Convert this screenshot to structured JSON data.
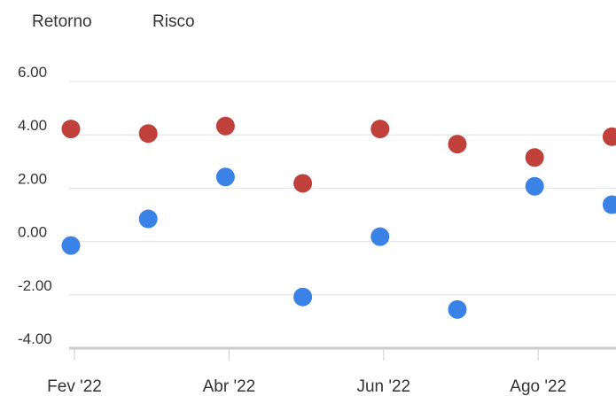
{
  "chart_data": {
    "type": "scatter",
    "legend": {
      "position": "top-left",
      "entries": [
        "Retorno",
        "Risco"
      ]
    },
    "x_ticks": [
      "Fev '22",
      "Abr '22",
      "Jun '22",
      "Ago '22"
    ],
    "y_ticks": [
      "6.00",
      "4.00",
      "2.00",
      "0.00",
      "-2.00",
      "-4.00"
    ],
    "ylim": [
      -4,
      6
    ],
    "grid": true,
    "series": [
      {
        "name": "Retorno",
        "color": "#3b82e6",
        "points": [
          {
            "x": "2022-02-01",
            "y": -0.15
          },
          {
            "x": "2022-03-01",
            "y": 0.85
          },
          {
            "x": "2022-04-01",
            "y": 2.42
          },
          {
            "x": "2022-05-01",
            "y": -2.08
          },
          {
            "x": "2022-06-01",
            "y": 0.18
          },
          {
            "x": "2022-07-01",
            "y": -2.55
          },
          {
            "x": "2022-08-01",
            "y": 2.07
          },
          {
            "x": "2022-09-01",
            "y": 1.38
          }
        ]
      },
      {
        "name": "Risco",
        "color": "#c0413b",
        "points": [
          {
            "x": "2022-02-01",
            "y": 4.22
          },
          {
            "x": "2022-03-01",
            "y": 4.05
          },
          {
            "x": "2022-04-01",
            "y": 4.33
          },
          {
            "x": "2022-05-01",
            "y": 2.18
          },
          {
            "x": "2022-06-01",
            "y": 4.22
          },
          {
            "x": "2022-07-01",
            "y": 3.65
          },
          {
            "x": "2022-08-01",
            "y": 3.15
          },
          {
            "x": "2022-09-01",
            "y": 3.93
          }
        ]
      }
    ]
  }
}
